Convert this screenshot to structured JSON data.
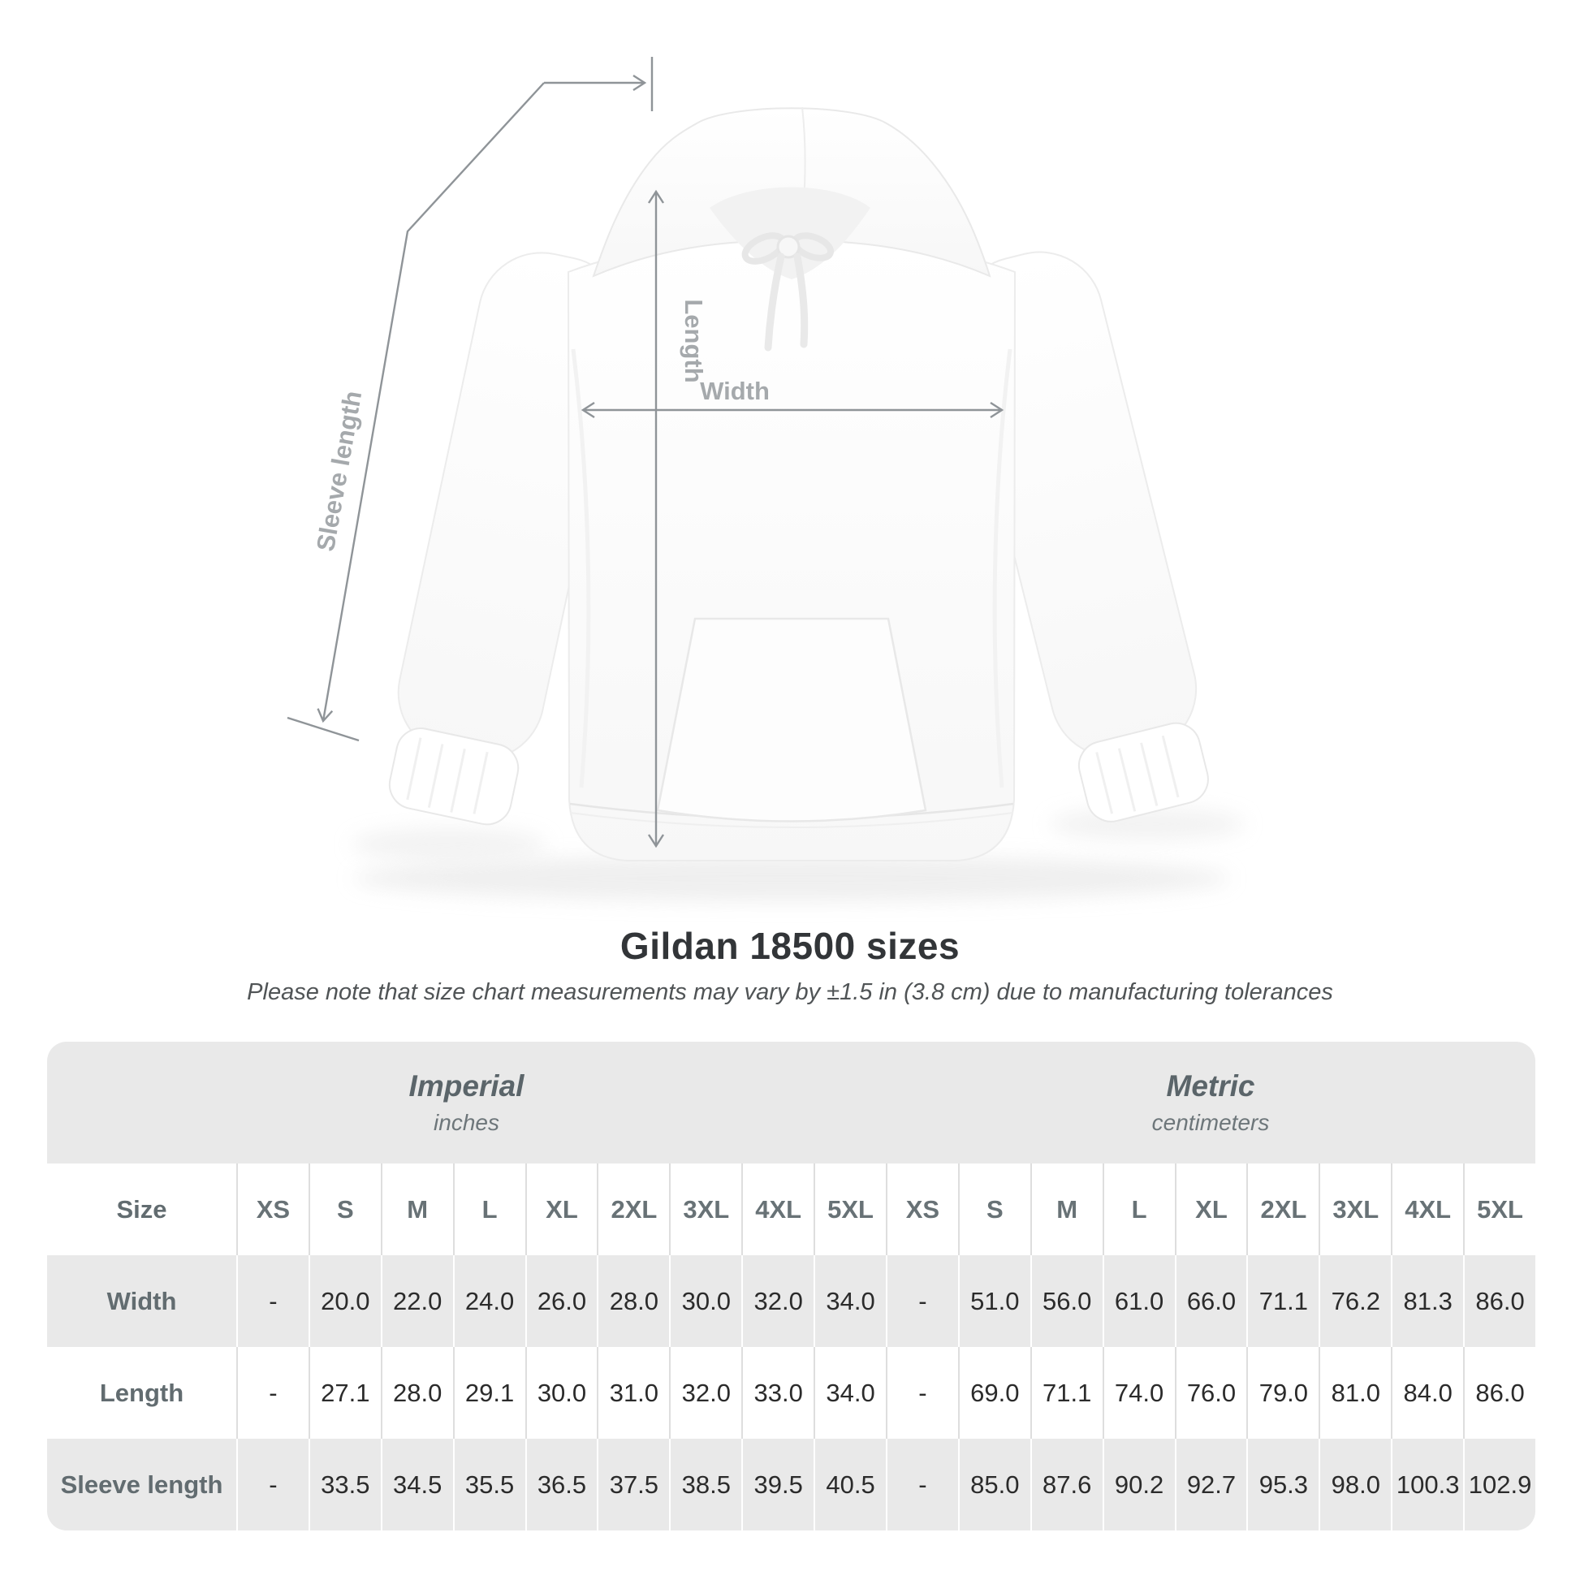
{
  "title": "Gildan 18500 sizes",
  "subtitle": "Please note that size chart measurements may vary by ±1.5 in (3.8 cm) due to manufacturing tolerances",
  "diagram": {
    "sleeve_label": "Sleeve length",
    "length_label": "Length",
    "width_label": "Width",
    "line_color": "#8f9498",
    "label_color": "#a5a9ac"
  },
  "units": {
    "imperial": {
      "title": "Imperial",
      "subtitle": "inches"
    },
    "metric": {
      "title": "Metric",
      "subtitle": "centimeters"
    }
  },
  "chart_data": {
    "type": "table",
    "title": "Gildan 18500 sizes",
    "size_row": {
      "label": "Size",
      "imperial": [
        "XS",
        "S",
        "M",
        "L",
        "XL",
        "2XL",
        "3XL",
        "4XL",
        "5XL"
      ],
      "metric": [
        "XS",
        "S",
        "M",
        "L",
        "XL",
        "2XL",
        "3XL",
        "4XL",
        "5XL"
      ]
    },
    "rows": [
      {
        "label": "Width",
        "imperial": [
          "-",
          "20.0",
          "22.0",
          "24.0",
          "26.0",
          "28.0",
          "30.0",
          "32.0",
          "34.0"
        ],
        "metric": [
          "-",
          "51.0",
          "56.0",
          "61.0",
          "66.0",
          "71.1",
          "76.2",
          "81.3",
          "86.0"
        ]
      },
      {
        "label": "Length",
        "imperial": [
          "-",
          "27.1",
          "28.0",
          "29.1",
          "30.0",
          "31.0",
          "32.0",
          "33.0",
          "34.0"
        ],
        "metric": [
          "-",
          "69.0",
          "71.1",
          "74.0",
          "76.0",
          "79.0",
          "81.0",
          "84.0",
          "86.0"
        ]
      },
      {
        "label": "Sleeve length",
        "imperial": [
          "-",
          "33.5",
          "34.5",
          "35.5",
          "36.5",
          "37.5",
          "38.5",
          "39.5",
          "40.5"
        ],
        "metric": [
          "-",
          "85.0",
          "87.6",
          "90.2",
          "92.7",
          "95.3",
          "98.0",
          "100.3",
          "102.9"
        ]
      }
    ]
  }
}
